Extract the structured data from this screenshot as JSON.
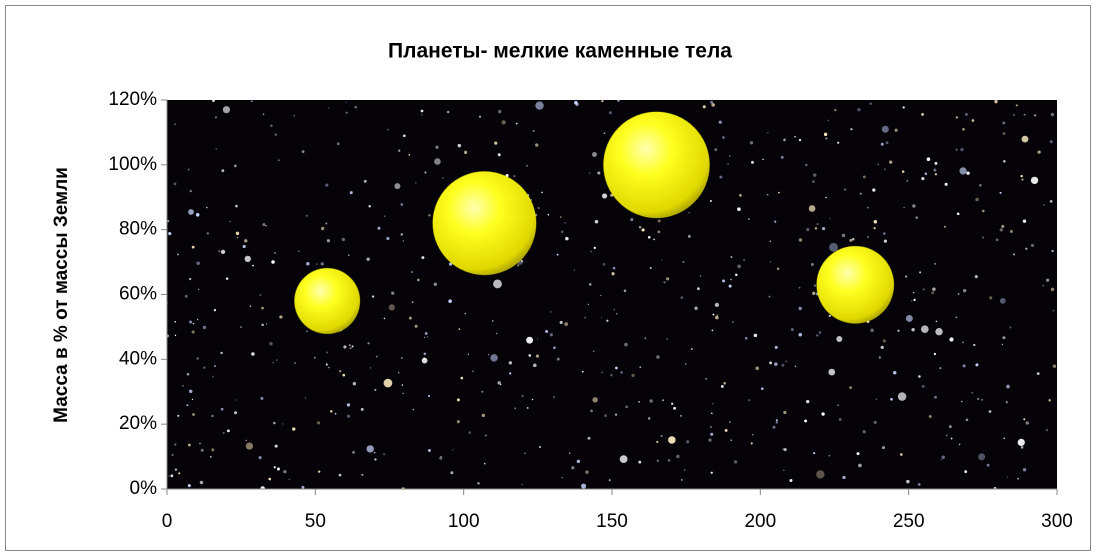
{
  "chart_data": {
    "type": "bubble",
    "title": "Планеты- мелкие каменные тела",
    "y_label": "Масса в % от массы Земли",
    "series": [
      {
        "color": "#ffff00",
        "x": [
          54,
          107,
          165,
          232
        ],
        "values": [
          58,
          82,
          100,
          63
        ],
        "sizes": [
          0.38,
          0.95,
          1,
          0.53
        ]
      }
    ],
    "xlim": [
      0,
      300
    ],
    "xticks": [
      0,
      50,
      100,
      150,
      200,
      250,
      300
    ],
    "ylim": [
      0,
      120
    ],
    "yticks": [
      {
        "value": 0,
        "label": "0%"
      },
      {
        "value": 20,
        "label": "20%"
      },
      {
        "value": 40,
        "label": "40%"
      },
      {
        "value": 60,
        "label": "60%"
      },
      {
        "value": 80,
        "label": "80%"
      },
      {
        "value": 100,
        "label": "100%"
      },
      {
        "value": 120,
        "label": "120%"
      }
    ]
  }
}
